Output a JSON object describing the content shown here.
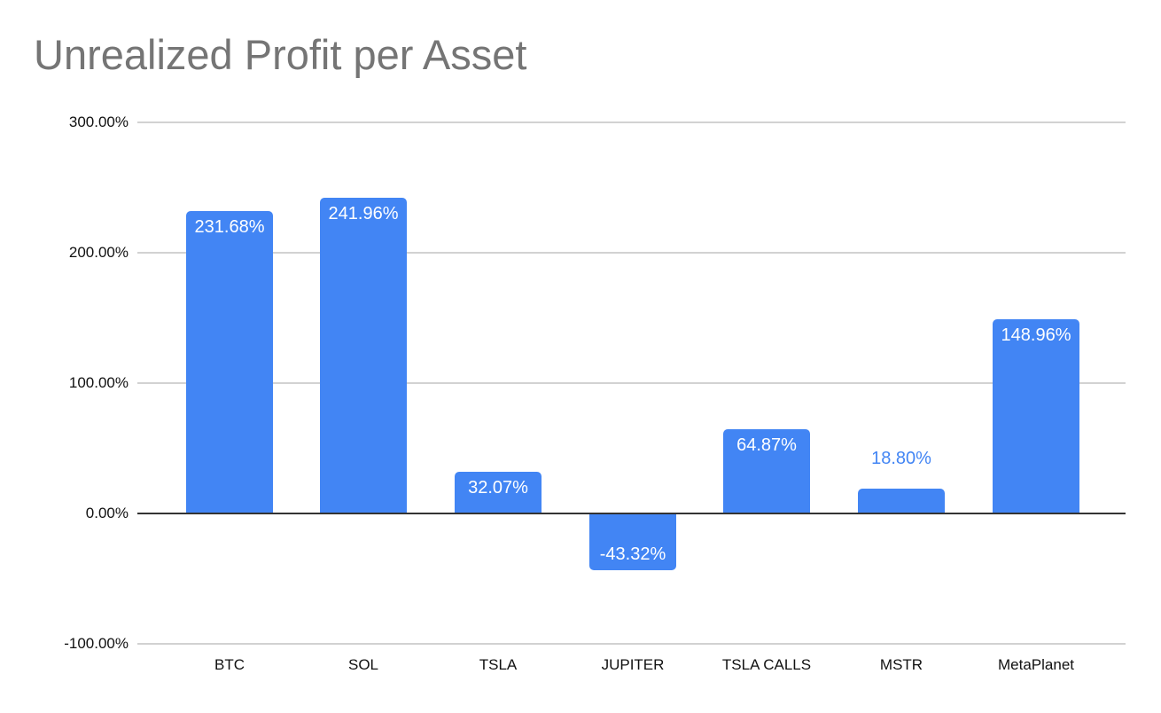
{
  "chart_data": {
    "type": "bar",
    "title": "Unrealized Profit per Asset",
    "categories": [
      "BTC",
      "SOL",
      "TSLA",
      "JUPITER",
      "TSLA CALLS",
      "MSTR",
      "MetaPlanet"
    ],
    "values": [
      231.68,
      241.96,
      32.07,
      -43.32,
      64.87,
      18.8,
      148.96
    ],
    "value_labels": [
      "231.68%",
      "241.96%",
      "32.07%",
      "-43.32%",
      "64.87%",
      "18.80%",
      "148.96%"
    ],
    "ylabel": "",
    "xlabel": "",
    "ylim": [
      -100,
      300
    ],
    "y_ticks": [
      "300.00%",
      "200.00%",
      "100.00%",
      "0.00%",
      "-100.00%"
    ],
    "y_tick_values": [
      300,
      200,
      100,
      0,
      -100
    ],
    "grid": true,
    "legend": "none",
    "bar_color": "#4285f4",
    "label_color_inside": "#ffffff",
    "label_color_outside": "#4285f4",
    "title_color": "#757575",
    "axis_line_color": "#333333",
    "gridline_color": "#d2d2d2",
    "tick_label_color": "#111111"
  }
}
